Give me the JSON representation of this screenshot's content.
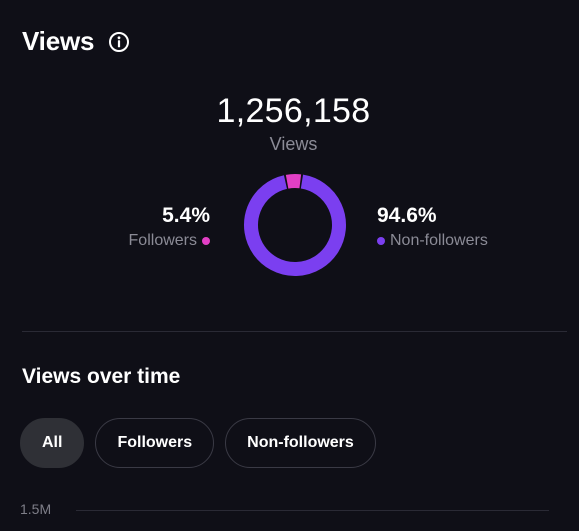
{
  "header": {
    "title": "Views",
    "info_icon": "info-icon"
  },
  "summary": {
    "total_views": "1,256,158",
    "total_label": "Views"
  },
  "segments": [
    {
      "key": "followers",
      "percent_label": "5.4%",
      "label": "Followers",
      "value": 5.4,
      "color": "#e23fc5"
    },
    {
      "key": "non_followers",
      "percent_label": "94.6%",
      "label": "Non-followers",
      "value": 94.6,
      "color": "#7b3ff0"
    }
  ],
  "section": {
    "title": "Views over time"
  },
  "filters": [
    {
      "label": "All",
      "active": true
    },
    {
      "label": "Followers",
      "active": false
    },
    {
      "label": "Non-followers",
      "active": false
    }
  ],
  "chart": {
    "y_ticks": [
      "1.5M"
    ]
  },
  "colors": {
    "background": "#0f0f17",
    "muted_text": "#8b8b96",
    "followers": "#e23fc5",
    "non_followers": "#7b3ff0"
  }
}
